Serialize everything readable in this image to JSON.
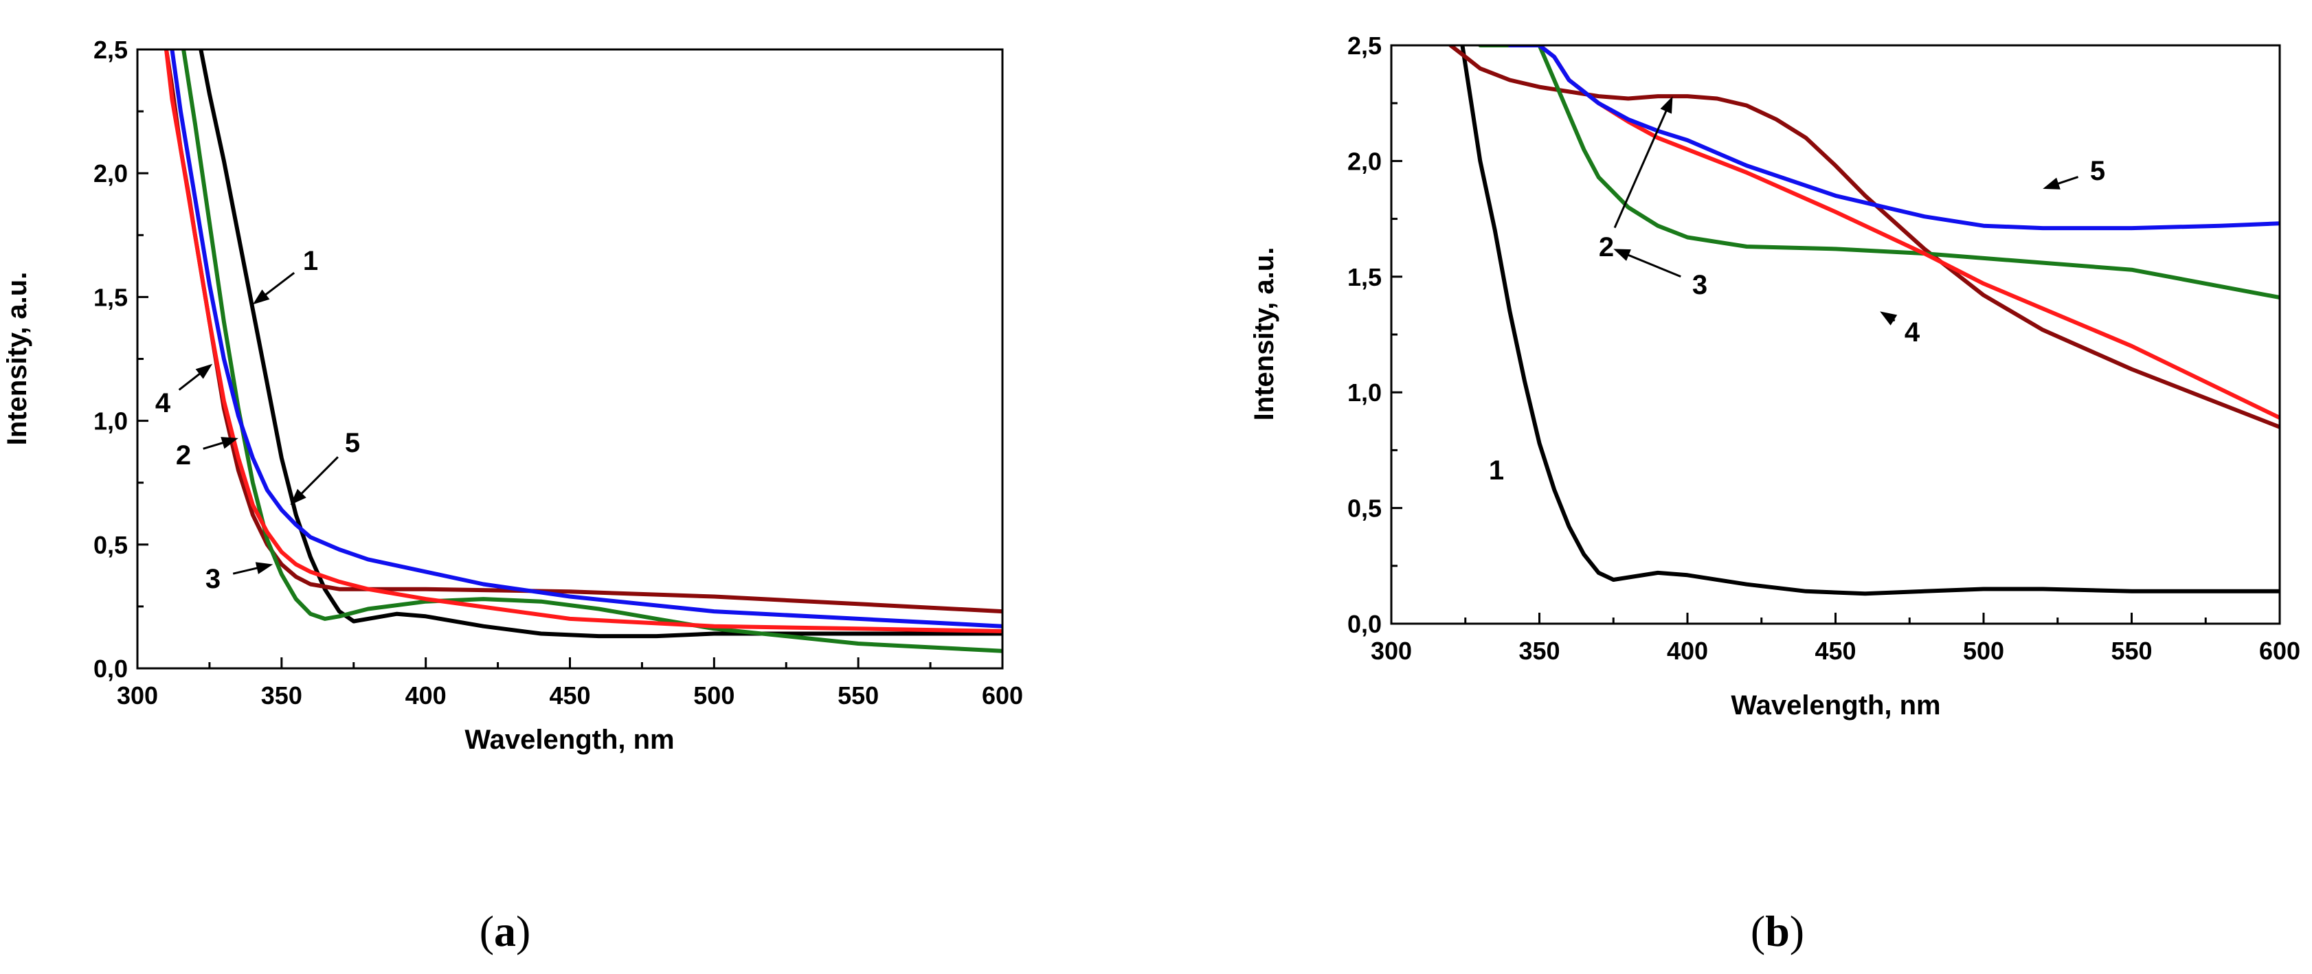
{
  "figure": {
    "panels": [
      {
        "caption_open": "(",
        "caption_letter": "a",
        "caption_close": ")"
      },
      {
        "caption_open": "(",
        "caption_letter": "b",
        "caption_close": ")"
      }
    ]
  },
  "colors": {
    "1": "#000000",
    "2": "#8b0a0a",
    "3": "#1a7a1a",
    "4": "#ff1a1a",
    "5": "#1010ee"
  },
  "chart_data": [
    {
      "type": "line",
      "panel": "a",
      "title": "",
      "xlabel": "Wavelength, nm",
      "ylabel": "Intensity, a.u.",
      "xlim": [
        300,
        600
      ],
      "ylim": [
        0,
        2.5
      ],
      "xticks": [
        "300",
        "350",
        "400",
        "450",
        "500",
        "550",
        "600"
      ],
      "yticks": [
        "0,0",
        "0,5",
        "1,0",
        "1,5",
        "2,0",
        "2,5"
      ],
      "series": [
        {
          "name": "1",
          "x": [
            322,
            325,
            330,
            335,
            340,
            345,
            350,
            355,
            360,
            365,
            370,
            375,
            380,
            390,
            400,
            420,
            440,
            460,
            480,
            500,
            520,
            550,
            600
          ],
          "y": [
            2.5,
            2.32,
            2.05,
            1.75,
            1.45,
            1.15,
            0.85,
            0.62,
            0.45,
            0.32,
            0.23,
            0.19,
            0.2,
            0.22,
            0.21,
            0.17,
            0.14,
            0.13,
            0.13,
            0.14,
            0.14,
            0.14,
            0.14
          ]
        },
        {
          "name": "2",
          "x": [
            310,
            312,
            315,
            318,
            320,
            325,
            330,
            335,
            340,
            345,
            350,
            355,
            360,
            370,
            380,
            400,
            450,
            500,
            550,
            600
          ],
          "y": [
            2.5,
            2.35,
            2.1,
            1.9,
            1.75,
            1.4,
            1.05,
            0.8,
            0.62,
            0.5,
            0.42,
            0.37,
            0.34,
            0.32,
            0.32,
            0.32,
            0.31,
            0.29,
            0.26,
            0.23
          ]
        },
        {
          "name": "3",
          "x": [
            316,
            318,
            320,
            325,
            330,
            335,
            340,
            345,
            350,
            355,
            360,
            365,
            370,
            380,
            400,
            420,
            440,
            460,
            480,
            500,
            550,
            600
          ],
          "y": [
            2.5,
            2.35,
            2.2,
            1.8,
            1.4,
            1.05,
            0.75,
            0.52,
            0.38,
            0.28,
            0.22,
            0.2,
            0.21,
            0.24,
            0.27,
            0.28,
            0.27,
            0.24,
            0.2,
            0.16,
            0.1,
            0.07
          ]
        },
        {
          "name": "4",
          "x": [
            310,
            312,
            315,
            320,
            325,
            330,
            335,
            340,
            345,
            350,
            355,
            360,
            370,
            380,
            400,
            450,
            500,
            550,
            600
          ],
          "y": [
            2.5,
            2.3,
            2.1,
            1.75,
            1.4,
            1.08,
            0.85,
            0.66,
            0.55,
            0.47,
            0.42,
            0.39,
            0.35,
            0.32,
            0.28,
            0.2,
            0.17,
            0.16,
            0.15
          ]
        },
        {
          "name": "5",
          "x": [
            312,
            315,
            320,
            325,
            330,
            335,
            340,
            345,
            350,
            355,
            360,
            370,
            380,
            400,
            420,
            450,
            500,
            550,
            600
          ],
          "y": [
            2.5,
            2.25,
            1.9,
            1.55,
            1.25,
            1.02,
            0.85,
            0.72,
            0.64,
            0.58,
            0.53,
            0.48,
            0.44,
            0.39,
            0.34,
            0.29,
            0.23,
            0.2,
            0.17
          ]
        }
      ],
      "annotations": [
        {
          "text": "1",
          "target_x": 340,
          "target_y": 1.47
        },
        {
          "text": "2",
          "target_x": 335,
          "target_y": 0.93
        },
        {
          "text": "3",
          "target_x": 347,
          "target_y": 0.42
        },
        {
          "text": "4",
          "target_x": 326,
          "target_y": 1.23
        },
        {
          "text": "5",
          "target_x": 353,
          "target_y": 0.66
        }
      ]
    },
    {
      "type": "line",
      "panel": "b",
      "title": "",
      "xlabel": "Wavelength, nm",
      "ylabel": "Intensity, a.u.",
      "xlim": [
        300,
        600
      ],
      "ylim": [
        0,
        2.5
      ],
      "xticks": [
        "300",
        "350",
        "400",
        "450",
        "500",
        "550",
        "600"
      ],
      "yticks": [
        "0,0",
        "0,5",
        "1,0",
        "1,5",
        "2,0",
        "2,5"
      ],
      "series": [
        {
          "name": "1",
          "x": [
            324,
            327,
            330,
            335,
            340,
            345,
            350,
            355,
            360,
            365,
            370,
            375,
            380,
            390,
            400,
            420,
            440,
            460,
            480,
            500,
            520,
            550,
            600
          ],
          "y": [
            2.5,
            2.25,
            2.0,
            1.7,
            1.35,
            1.05,
            0.78,
            0.58,
            0.42,
            0.3,
            0.22,
            0.19,
            0.2,
            0.22,
            0.21,
            0.17,
            0.14,
            0.13,
            0.14,
            0.15,
            0.15,
            0.14,
            0.14
          ]
        },
        {
          "name": "2",
          "x": [
            320,
            325,
            330,
            340,
            350,
            360,
            370,
            380,
            390,
            400,
            410,
            420,
            430,
            440,
            450,
            460,
            480,
            500,
            520,
            550,
            580,
            600
          ],
          "y": [
            2.5,
            2.45,
            2.4,
            2.35,
            2.32,
            2.3,
            2.28,
            2.27,
            2.28,
            2.28,
            2.27,
            2.24,
            2.18,
            2.1,
            1.98,
            1.85,
            1.62,
            1.42,
            1.27,
            1.1,
            0.95,
            0.85
          ]
        },
        {
          "name": "3",
          "x": [
            330,
            340,
            350,
            355,
            360,
            365,
            370,
            380,
            390,
            400,
            420,
            450,
            480,
            500,
            550,
            600
          ],
          "y": [
            2.5,
            2.5,
            2.5,
            2.35,
            2.2,
            2.05,
            1.93,
            1.8,
            1.72,
            1.67,
            1.63,
            1.62,
            1.6,
            1.58,
            1.53,
            1.41
          ]
        },
        {
          "name": "4",
          "x": [
            340,
            350,
            355,
            360,
            370,
            380,
            390,
            400,
            420,
            450,
            480,
            500,
            550,
            600
          ],
          "y": [
            2.5,
            2.5,
            2.45,
            2.35,
            2.25,
            2.17,
            2.1,
            2.05,
            1.95,
            1.78,
            1.6,
            1.47,
            1.2,
            0.89
          ]
        },
        {
          "name": "5",
          "x": [
            340,
            350,
            355,
            360,
            370,
            380,
            390,
            400,
            420,
            450,
            480,
            500,
            520,
            550,
            580,
            600
          ],
          "y": [
            2.5,
            2.5,
            2.45,
            2.35,
            2.25,
            2.18,
            2.13,
            2.09,
            1.98,
            1.85,
            1.76,
            1.72,
            1.71,
            1.71,
            1.72,
            1.73
          ]
        }
      ],
      "annotations": [
        {
          "text": "1",
          "target_x": null,
          "target_y": null
        },
        {
          "text": "2",
          "target_x": 395,
          "target_y": 2.28
        },
        {
          "text": "3",
          "target_x": 375,
          "target_y": 1.62
        },
        {
          "text": "4",
          "target_x": 465,
          "target_y": 1.35
        },
        {
          "text": "5",
          "target_x": 520,
          "target_y": 1.88
        }
      ]
    }
  ]
}
